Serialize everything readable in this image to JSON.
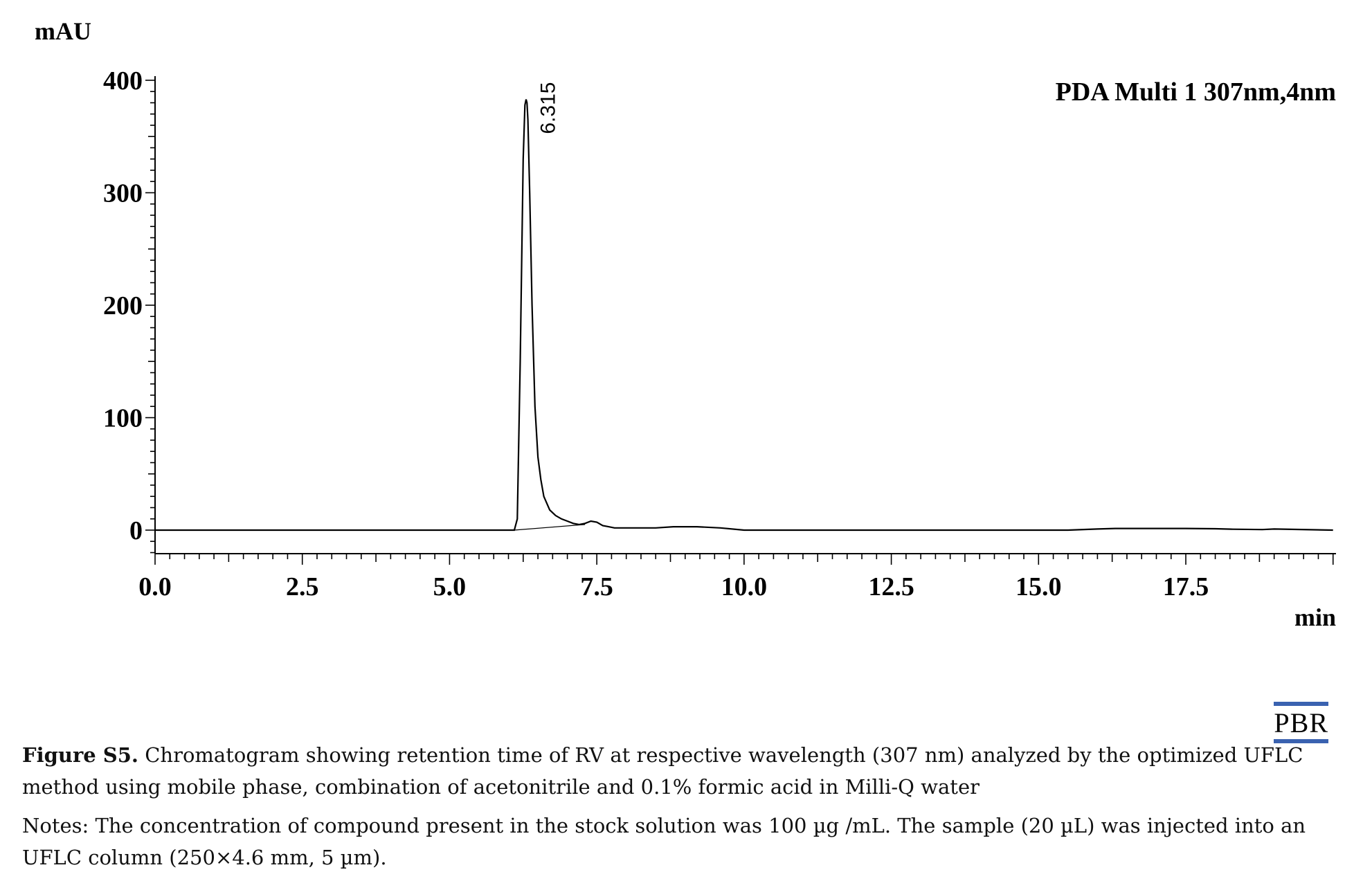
{
  "chart_data": {
    "type": "line",
    "legend": "PDA Multi 1 307nm,4nm",
    "ylabel": "mAU",
    "xlabel": "min",
    "xlim": [
      0,
      20
    ],
    "ylim": [
      -20,
      400
    ],
    "x_ticks": [
      "0.0",
      "2.5",
      "5.0",
      "7.5",
      "10.0",
      "12.5",
      "15.0",
      "17.5"
    ],
    "y_ticks": [
      "0",
      "100",
      "200",
      "300",
      "400"
    ],
    "peak": {
      "label": "6.315",
      "retention_time": 6.315,
      "height": 383
    },
    "integration_baseline": {
      "start": [
        6.1,
        0
      ],
      "end": [
        7.3,
        5
      ]
    },
    "series": [
      {
        "x": [
          0,
          5.9,
          6.1,
          6.15,
          6.2,
          6.25,
          6.28,
          6.3,
          6.315,
          6.33,
          6.36,
          6.4,
          6.45,
          6.5,
          6.55,
          6.6,
          6.7,
          6.8,
          6.9,
          7.0,
          7.1,
          7.2,
          7.3,
          7.4,
          7.5,
          7.6,
          7.7,
          7.8,
          8.0,
          8.5,
          8.8,
          9.2,
          9.6,
          10.0,
          12.0,
          15.5,
          16.0,
          16.3,
          17.0,
          17.5,
          18.0,
          18.3,
          18.8,
          19.0,
          20.0
        ],
        "y": [
          0,
          0,
          0,
          10,
          150,
          330,
          378,
          383,
          380,
          365,
          300,
          200,
          110,
          65,
          45,
          30,
          18,
          13,
          10,
          8,
          6,
          5,
          6,
          8,
          7,
          4,
          3,
          2,
          2,
          2,
          3,
          3,
          2,
          0,
          0,
          0,
          1,
          1.5,
          1.5,
          1.5,
          1.2,
          0.8,
          0.5,
          1,
          0
        ]
      }
    ]
  },
  "caption": {
    "figure_label": "Figure S5.",
    "text": " Chromatogram showing retention time of RV at respective wavelength (307 nm) analyzed by the optimized UFLC method using mobile phase, combination of acetonitrile and 0.1% formic acid in Milli-Q water",
    "notes": "Notes: The concentration of compound present in the stock solution was 100 µg /mL. The sample (20 µL) was injected into an UFLC column (250×4.6 mm, 5 µm)."
  },
  "logo": {
    "text": "PBR",
    "accent_color": "#3a62b0"
  }
}
